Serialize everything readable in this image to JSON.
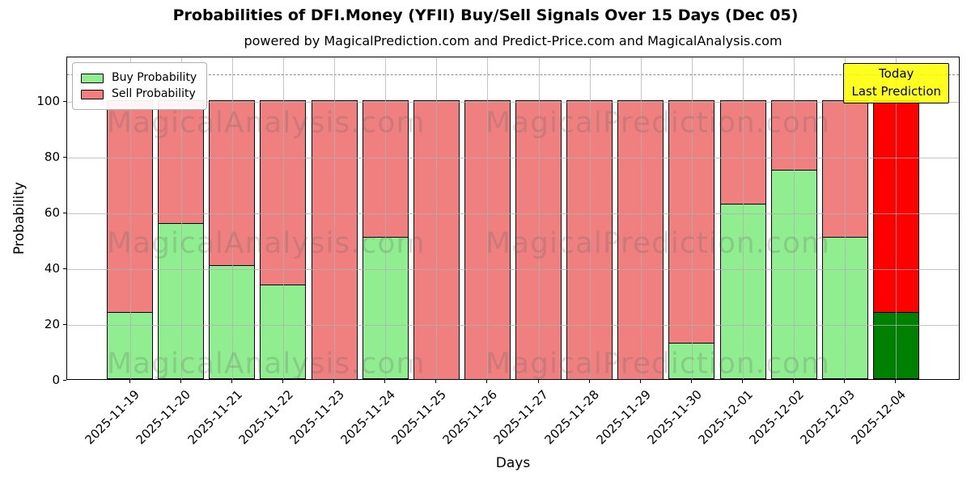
{
  "title": "Probabilities of DFI.Money (YFII) Buy/Sell Signals Over 15 Days (Dec 05)",
  "subtitle": "powered by MagicalPrediction.com and Predict-Price.com and MagicalAnalysis.com",
  "axes": {
    "xlabel": "Days",
    "ylabel": "Probability",
    "yticks": [
      0,
      20,
      40,
      60,
      80,
      100
    ],
    "ylim": [
      0,
      116
    ],
    "grid": true,
    "dashed_guideline_y": 110
  },
  "legend": {
    "position": "upper-left",
    "items": [
      {
        "label": "Buy Probability",
        "color": "#90EE90"
      },
      {
        "label": "Sell Probability",
        "color": "#F08080"
      }
    ]
  },
  "annotation_box": {
    "lines": [
      "Today",
      "Last Prediction"
    ],
    "bg_color": "#FFFF00",
    "border_color": "#000000"
  },
  "watermarks": {
    "left_text": "MagicalAnalysis.com",
    "right_text": "MagicalPrediction.com"
  },
  "colors": {
    "buy": "#90EE90",
    "sell": "#F08080",
    "buy_today": "#008000",
    "sell_today": "#FF0000",
    "grid": "#b0b0b0",
    "dashed_line": "#8c8c8c",
    "annotation_bg": "#FFFF00"
  },
  "chart_data": {
    "type": "bar",
    "stacked": true,
    "title": "Probabilities of DFI.Money (YFII) Buy/Sell Signals Over 15 Days (Dec 05)",
    "xlabel": "Days",
    "ylabel": "Probability",
    "ylim": [
      0,
      116
    ],
    "grid": "on",
    "legend_position": "upper-left",
    "categories": [
      "2025-11-19",
      "2025-11-20",
      "2025-11-21",
      "2025-11-22",
      "2025-11-23",
      "2025-11-24",
      "2025-11-25",
      "2025-11-26",
      "2025-11-27",
      "2025-11-28",
      "2025-11-29",
      "2025-11-30",
      "2025-12-01",
      "2025-12-02",
      "2025-12-03",
      "2025-12-04"
    ],
    "series": [
      {
        "name": "Buy Probability",
        "color": "#90EE90",
        "today_color": "#008000",
        "values": [
          24,
          56,
          41,
          34,
          0,
          51,
          0,
          0,
          0,
          0,
          0,
          13,
          63,
          75,
          51,
          24
        ]
      },
      {
        "name": "Sell Probability",
        "color": "#F08080",
        "today_color": "#FF0000",
        "values": [
          76,
          44,
          59,
          66,
          100,
          49,
          100,
          100,
          100,
          100,
          100,
          87,
          37,
          25,
          49,
          76
        ]
      }
    ],
    "today_index": 15,
    "annotation": "Today / Last Prediction at 2025-12-04"
  }
}
